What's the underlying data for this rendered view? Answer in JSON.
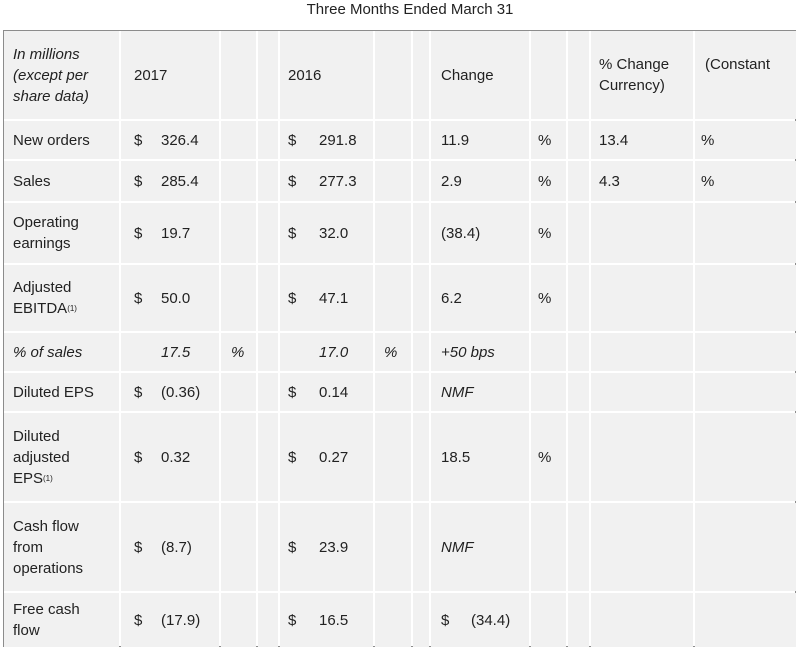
{
  "header": {
    "title": "Three Months Ended March 31"
  },
  "table": {
    "header": [
      "In millions (except per share data)",
      "2017",
      "2016",
      "Change",
      "% Change Currency)",
      "(Constant"
    ],
    "rows": [
      {
        "label": "New orders",
        "cells": [
          "$",
          "326.4",
          null,
          "$",
          "291.8",
          null,
          null,
          "11.9",
          "%",
          "13.4",
          "%"
        ]
      },
      {
        "label": "Sales",
        "cells": [
          "$",
          "285.4",
          null,
          "$",
          "277.3",
          null,
          null,
          "2.9",
          "%",
          "4.3",
          "%"
        ]
      },
      {
        "label": "Operating earnings",
        "cells": [
          "$",
          "19.7",
          null,
          "$",
          "32.0",
          null,
          null,
          "(38.4)",
          "%",
          null,
          null
        ]
      },
      {
        "label": "Adjusted EBITDA",
        "label_note": "(1)",
        "cells": [
          "$",
          "50.0",
          null,
          "$",
          "47.1",
          null,
          null,
          "6.2",
          "%",
          null,
          null
        ]
      },
      {
        "label": "% of sales",
        "cells": [
          null,
          "17.5",
          "%",
          null,
          "17.0",
          "%",
          null,
          "+50 bps",
          null,
          null,
          null
        ]
      },
      {
        "label": "Diluted EPS",
        "cells": [
          "$",
          "(0.36)",
          null,
          "$",
          "0.14",
          null,
          null,
          "NMF",
          null,
          null,
          null
        ]
      },
      {
        "label": "Diluted adjusted EPS",
        "label_note": "(1)",
        "cells": [
          "$",
          "0.32",
          null,
          "$",
          "0.27",
          null,
          null,
          "18.5",
          "%",
          null,
          null
        ]
      },
      {
        "label": "Cash flow from operations",
        "cells": [
          "$",
          "(8.7)",
          null,
          "$",
          "23.9",
          null,
          null,
          "NMF",
          null,
          null,
          null
        ]
      },
      {
        "label": "Free cash flow",
        "cells": [
          "$",
          "(17.9)",
          null,
          "$",
          "16.5",
          null,
          "$",
          "(34.4)",
          null,
          null,
          null
        ]
      }
    ]
  }
}
